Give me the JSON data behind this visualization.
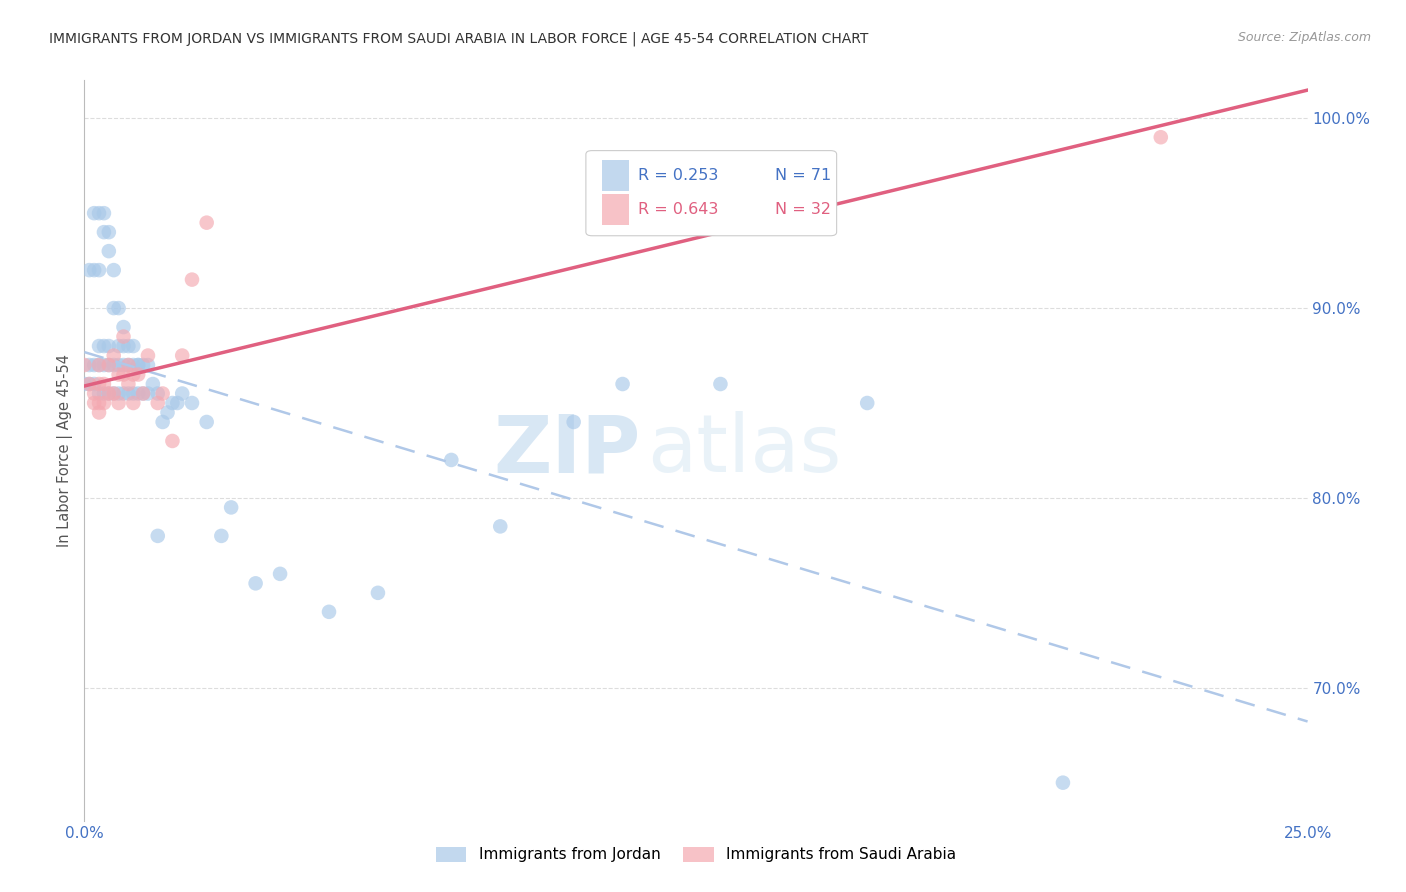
{
  "title": "IMMIGRANTS FROM JORDAN VS IMMIGRANTS FROM SAUDI ARABIA IN LABOR FORCE | AGE 45-54 CORRELATION CHART",
  "source": "Source: ZipAtlas.com",
  "ylabel": "In Labor Force | Age 45-54",
  "xlim": [
    0.0,
    0.25
  ],
  "ylim": [
    0.63,
    1.02
  ],
  "xticks": [
    0.0,
    0.05,
    0.1,
    0.15,
    0.2,
    0.25
  ],
  "xticklabels": [
    "0.0%",
    "",
    "",
    "",
    "",
    "25.0%"
  ],
  "yticks": [
    0.7,
    0.8,
    0.9,
    1.0
  ],
  "yticklabels": [
    "70.0%",
    "80.0%",
    "90.0%",
    "100.0%"
  ],
  "jordan_color": "#a8c8e8",
  "saudi_color": "#f4a8b0",
  "jordan_line_color": "#7090c0",
  "saudi_line_color": "#e06080",
  "legend_r_jordan": "R = 0.253",
  "legend_n_jordan": "N = 71",
  "legend_r_saudi": "R = 0.643",
  "legend_n_saudi": "N = 32",
  "watermark_zip": "ZIP",
  "watermark_atlas": "atlas",
  "background_color": "#ffffff",
  "grid_color": "#dddddd",
  "jordan_x": [
    0.0,
    0.001,
    0.001,
    0.001,
    0.002,
    0.002,
    0.002,
    0.002,
    0.003,
    0.003,
    0.003,
    0.003,
    0.003,
    0.004,
    0.004,
    0.004,
    0.004,
    0.004,
    0.005,
    0.005,
    0.005,
    0.005,
    0.005,
    0.006,
    0.006,
    0.006,
    0.006,
    0.007,
    0.007,
    0.007,
    0.007,
    0.008,
    0.008,
    0.008,
    0.008,
    0.009,
    0.009,
    0.009,
    0.01,
    0.01,
    0.01,
    0.011,
    0.011,
    0.011,
    0.012,
    0.012,
    0.013,
    0.013,
    0.014,
    0.015,
    0.015,
    0.016,
    0.017,
    0.018,
    0.019,
    0.02,
    0.022,
    0.025,
    0.028,
    0.03,
    0.035,
    0.04,
    0.05,
    0.06,
    0.075,
    0.085,
    0.1,
    0.11,
    0.13,
    0.16,
    0.2
  ],
  "jordan_y": [
    0.86,
    0.86,
    0.92,
    0.87,
    0.95,
    0.92,
    0.86,
    0.87,
    0.95,
    0.92,
    0.88,
    0.87,
    0.855,
    0.95,
    0.94,
    0.88,
    0.87,
    0.855,
    0.94,
    0.93,
    0.88,
    0.87,
    0.855,
    0.92,
    0.9,
    0.87,
    0.855,
    0.9,
    0.88,
    0.87,
    0.855,
    0.89,
    0.88,
    0.87,
    0.855,
    0.88,
    0.87,
    0.855,
    0.88,
    0.87,
    0.855,
    0.87,
    0.87,
    0.855,
    0.87,
    0.855,
    0.87,
    0.855,
    0.86,
    0.855,
    0.78,
    0.84,
    0.845,
    0.85,
    0.85,
    0.855,
    0.85,
    0.84,
    0.78,
    0.795,
    0.755,
    0.76,
    0.74,
    0.75,
    0.82,
    0.785,
    0.84,
    0.86,
    0.86,
    0.85,
    0.65
  ],
  "saudi_x": [
    0.0,
    0.001,
    0.002,
    0.002,
    0.003,
    0.003,
    0.003,
    0.003,
    0.004,
    0.004,
    0.005,
    0.005,
    0.006,
    0.006,
    0.007,
    0.007,
    0.008,
    0.008,
    0.009,
    0.009,
    0.01,
    0.01,
    0.011,
    0.012,
    0.013,
    0.015,
    0.016,
    0.018,
    0.02,
    0.022,
    0.025,
    0.22
  ],
  "saudi_y": [
    0.87,
    0.86,
    0.855,
    0.85,
    0.87,
    0.86,
    0.85,
    0.845,
    0.86,
    0.85,
    0.87,
    0.855,
    0.875,
    0.855,
    0.865,
    0.85,
    0.885,
    0.865,
    0.86,
    0.87,
    0.865,
    0.85,
    0.865,
    0.855,
    0.875,
    0.85,
    0.855,
    0.83,
    0.875,
    0.915,
    0.945,
    0.99
  ]
}
